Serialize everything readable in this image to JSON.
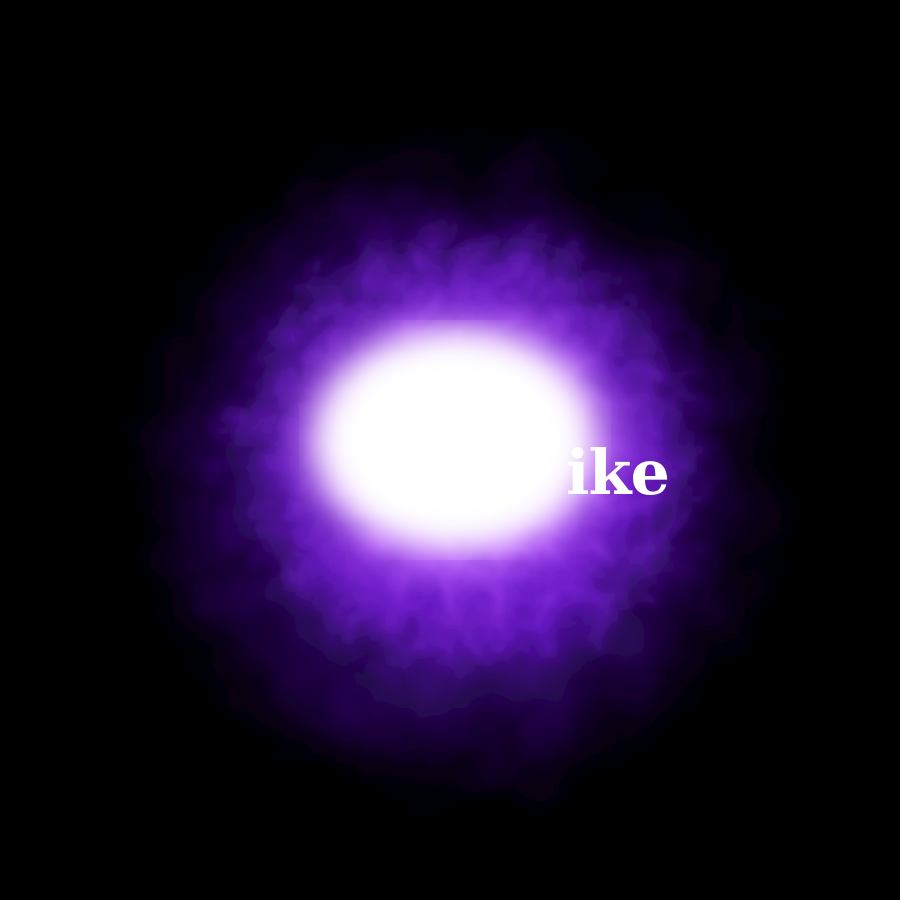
{
  "scene": {
    "background_color": "#000000",
    "glow_core_color": "#ffffff",
    "glow_mid_color": "#b04cff",
    "glow_outer_color": "#5a12b8",
    "text_color": "#ffffff"
  },
  "overlay": {
    "text": "ike"
  }
}
